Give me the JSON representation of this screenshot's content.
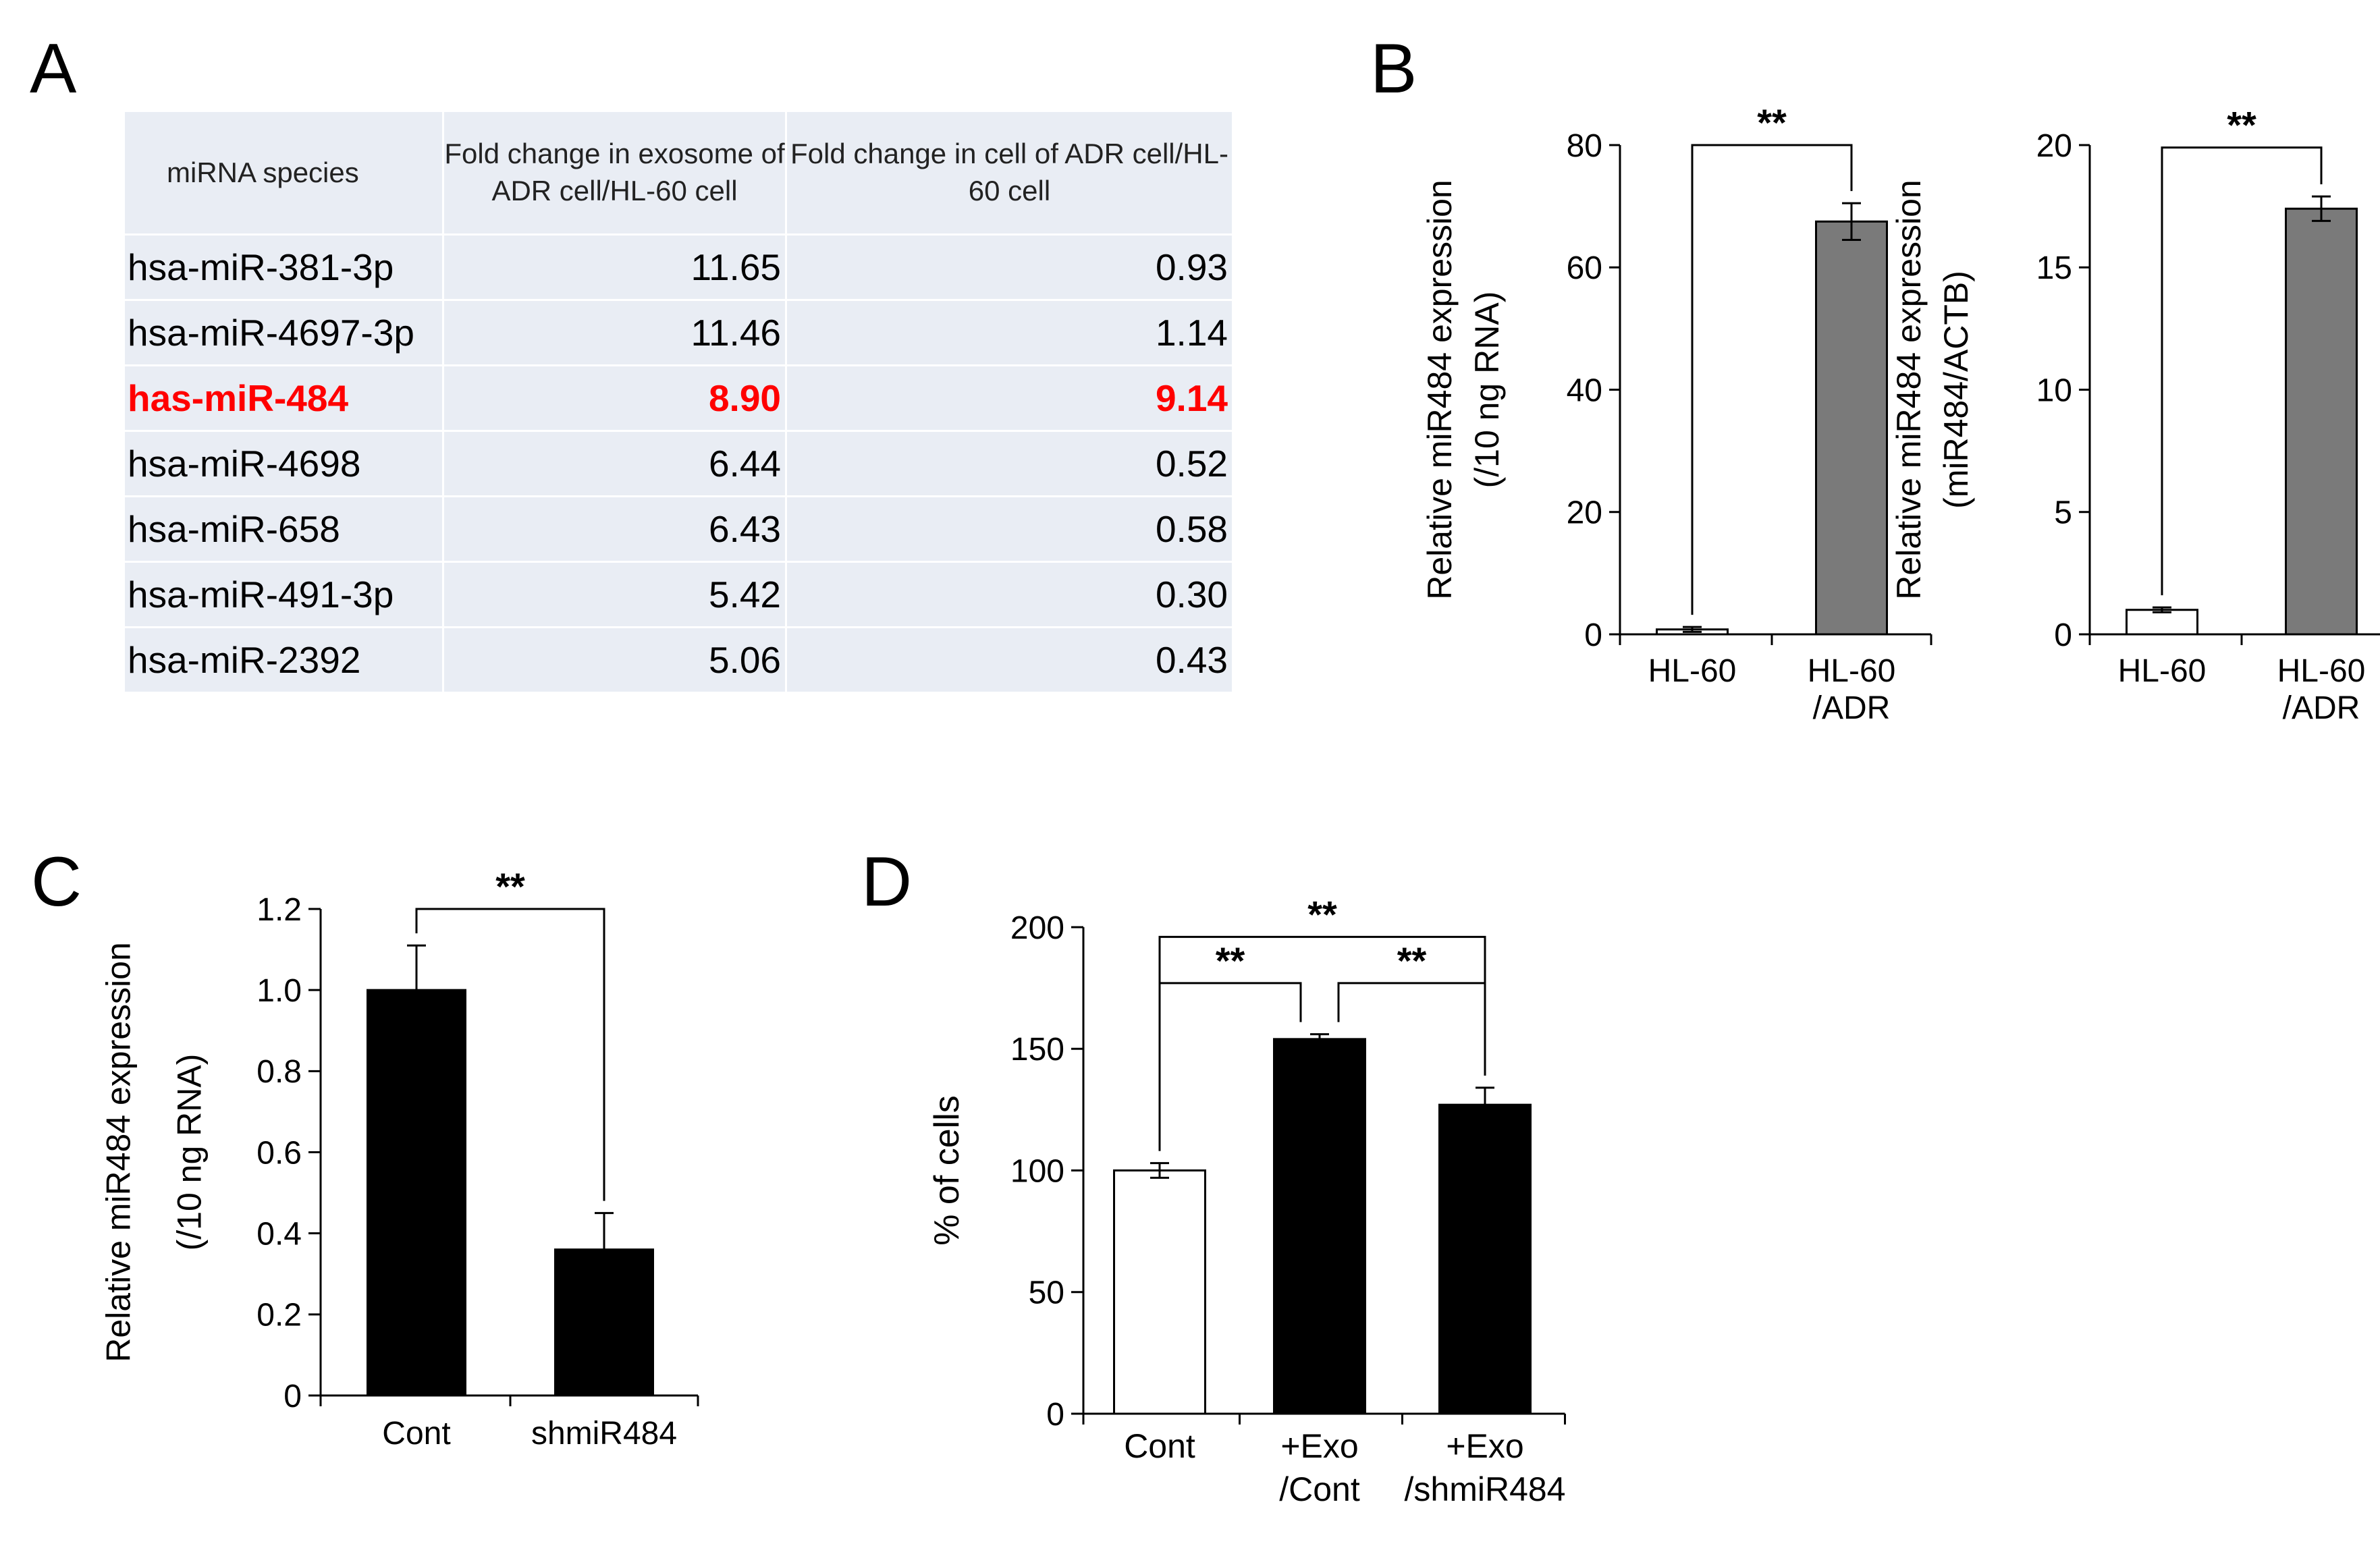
{
  "panels": {
    "a": "A",
    "b": "B",
    "c": "C",
    "d": "D"
  },
  "table": {
    "headers": [
      "miRNA  species",
      "Fold  change  in exosome of ADR cell/HL-60 cell",
      "Fold  change in cell of ADR cell/HL-60 cell"
    ],
    "rows": [
      {
        "name": "hsa-miR-381-3p",
        "exo": "11.65",
        "cell": "0.93",
        "highlight": false
      },
      {
        "name": "hsa-miR-4697-3p",
        "exo": "11.46",
        "cell": "1.14",
        "highlight": false
      },
      {
        "name": "has-miR-484",
        "exo": "8.90",
        "cell": "9.14",
        "highlight": true
      },
      {
        "name": "hsa-miR-4698",
        "exo": "6.44",
        "cell": "0.52",
        "highlight": false
      },
      {
        "name": "hsa-miR-658",
        "exo": "6.43",
        "cell": "0.58",
        "highlight": false
      },
      {
        "name": "hsa-miR-491-3p",
        "exo": "5.42",
        "cell": "0.30",
        "highlight": false
      },
      {
        "name": "hsa-miR-2392",
        "exo": "5.06",
        "cell": "0.43",
        "highlight": false
      }
    ]
  },
  "chart_data": [
    {
      "id": "B1",
      "type": "bar",
      "categories": [
        [
          "HL-60"
        ],
        [
          "HL-60",
          "/ADR"
        ]
      ],
      "values": [
        0.8,
        67.5
      ],
      "errors": [
        0.4,
        3
      ],
      "colors": [
        "#ffffff",
        "#7a7a7a"
      ],
      "ylabel": [
        "Relative  miR484 expression",
        "(/10 ng RNA)"
      ],
      "ylim": [
        0,
        80
      ],
      "yticks": [
        0,
        20,
        40,
        60,
        80
      ],
      "tick_labels": [
        "0",
        "20",
        "40",
        "60",
        "80"
      ],
      "significance": [
        {
          "from": 0,
          "to": 1,
          "label": "**",
          "level": 80
        }
      ]
    },
    {
      "id": "B2",
      "type": "bar",
      "categories": [
        [
          "HL-60"
        ],
        [
          "HL-60",
          "/ADR"
        ]
      ],
      "values": [
        1.0,
        17.4
      ],
      "errors": [
        0.1,
        0.5
      ],
      "colors": [
        "#ffffff",
        "#7a7a7a"
      ],
      "ylabel": [
        "Relative  miR484 expression",
        "(miR484/ACTB)"
      ],
      "ylim": [
        0,
        20
      ],
      "yticks": [
        0,
        5,
        10,
        15,
        20
      ],
      "tick_labels": [
        "0",
        "5",
        "10",
        "15",
        "20"
      ],
      "significance": [
        {
          "from": 0,
          "to": 1,
          "label": "**",
          "level": 19.9
        }
      ]
    },
    {
      "id": "C",
      "type": "bar",
      "categories": [
        [
          "Cont"
        ],
        [
          "shmiR484"
        ]
      ],
      "values": [
        1.0,
        0.36
      ],
      "errors": [
        0.11,
        0.09
      ],
      "colors": [
        "#000000",
        "#000000"
      ],
      "ylabel": [
        "Relative  miR484 expression",
        "(/10 ng RNA)"
      ],
      "ylim": [
        0,
        1.2
      ],
      "yticks": [
        0,
        0.2,
        0.4,
        0.6,
        0.8,
        1.0,
        1.2
      ],
      "tick_labels": [
        "0",
        "0.2",
        "0.4",
        "0.6",
        "0.8",
        "1.0",
        "1.2"
      ],
      "significance": [
        {
          "from": 0,
          "to": 1,
          "label": "**",
          "level": 1.2
        }
      ]
    },
    {
      "id": "D",
      "type": "bar",
      "categories": [
        [
          "Cont"
        ],
        [
          "+Exo",
          "/Cont"
        ],
        [
          "+Exo",
          "/shmiR484"
        ]
      ],
      "values": [
        100,
        154,
        127
      ],
      "errors": [
        3,
        2,
        7
      ],
      "colors": [
        "#ffffff",
        "#000000",
        "#000000"
      ],
      "ylabel": [
        "% of cells"
      ],
      "ylim": [
        0,
        200
      ],
      "yticks": [
        0,
        50,
        100,
        150,
        200
      ],
      "tick_labels": [
        "0",
        "50",
        "100",
        "150",
        "200"
      ],
      "significance": [
        {
          "from": 0,
          "to": 2,
          "label": "**",
          "level": 196
        },
        {
          "from": 0,
          "to": 1,
          "label": "**",
          "level": 177
        },
        {
          "from": 1,
          "to": 2,
          "label": "**",
          "level": 177
        }
      ]
    }
  ]
}
